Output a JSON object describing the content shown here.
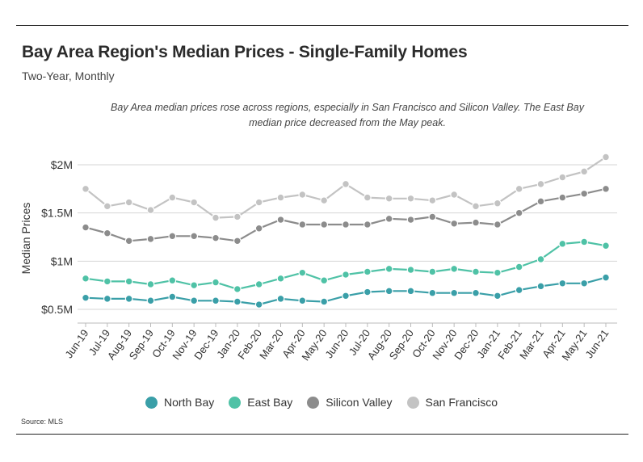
{
  "header": {
    "title": "Bay Area Region's Median Prices - Single-Family Homes",
    "subtitle": "Two-Year, Monthly",
    "note": "Bay Area median prices rose across regions, especially in San Francisco and Silicon Valley. The East Bay median price decreased from the May peak."
  },
  "footer": {
    "source": "Source:  MLS"
  },
  "chart_data": {
    "type": "line",
    "ylabel": "Median Prices",
    "xlabel": "",
    "ylim": [
      0.35,
      2.1
    ],
    "yticks": [
      0.5,
      1.0,
      1.5,
      2.0
    ],
    "ytick_labels": [
      "$0.5M",
      "$1M",
      "$1.5M",
      "$2M"
    ],
    "grid": true,
    "legend_position": "bottom",
    "categories": [
      "Jun-19",
      "Jul-19",
      "Aug-19",
      "Sep-19",
      "Oct-19",
      "Nov-19",
      "Dec-19",
      "Jan-20",
      "Feb-20",
      "Mar-20",
      "Apr-20",
      "May-20",
      "Jun-20",
      "Jul-20",
      "Aug-20",
      "Sep-20",
      "Oct-20",
      "Nov-20",
      "Dec-20",
      "Jan-21",
      "Feb-21",
      "Mar-21",
      "Apr-21",
      "May-21",
      "Jun-21"
    ],
    "series": [
      {
        "name": "North Bay",
        "color": "#3a9fa8",
        "values": [
          0.62,
          0.61,
          0.61,
          0.59,
          0.63,
          0.59,
          0.59,
          0.58,
          0.55,
          0.61,
          0.59,
          0.58,
          0.64,
          0.68,
          0.69,
          0.69,
          0.67,
          0.67,
          0.67,
          0.64,
          0.7,
          0.74,
          0.77,
          0.77,
          0.83
        ]
      },
      {
        "name": "East Bay",
        "color": "#4fc2a6",
        "values": [
          0.82,
          0.79,
          0.79,
          0.76,
          0.8,
          0.75,
          0.78,
          0.71,
          0.76,
          0.82,
          0.88,
          0.8,
          0.86,
          0.89,
          0.92,
          0.91,
          0.89,
          0.92,
          0.89,
          0.88,
          0.94,
          1.02,
          1.18,
          1.2,
          1.16
        ]
      },
      {
        "name": "Silicon Valley",
        "color": "#8c8c8c",
        "values": [
          1.35,
          1.29,
          1.21,
          1.23,
          1.26,
          1.26,
          1.24,
          1.21,
          1.34,
          1.43,
          1.38,
          1.38,
          1.38,
          1.38,
          1.44,
          1.43,
          1.46,
          1.39,
          1.4,
          1.38,
          1.5,
          1.62,
          1.66,
          1.7,
          1.75
        ]
      },
      {
        "name": "San Francisco",
        "color": "#c3c3c3",
        "values": [
          1.75,
          1.57,
          1.61,
          1.53,
          1.66,
          1.61,
          1.45,
          1.46,
          1.61,
          1.66,
          1.69,
          1.63,
          1.8,
          1.66,
          1.65,
          1.65,
          1.63,
          1.69,
          1.57,
          1.6,
          1.75,
          1.8,
          1.87,
          1.93,
          2.08
        ]
      }
    ]
  }
}
